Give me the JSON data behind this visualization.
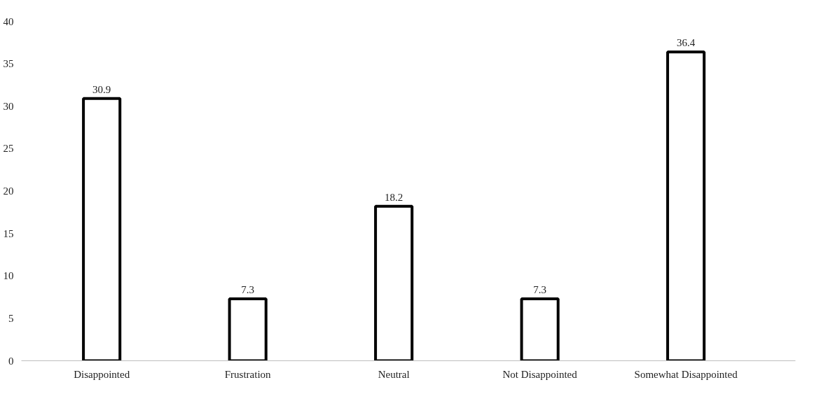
{
  "chart_data": {
    "type": "bar",
    "categories": [
      "Disappointed",
      "Frustration",
      "Neutral",
      "Not Disappointed",
      "Somewhat Disappointed"
    ],
    "values": [
      30.9,
      7.3,
      18.2,
      7.3,
      36.4
    ],
    "color": "#ffffff",
    "ylim": [
      0,
      40
    ],
    "yticks": [
      0,
      5,
      10,
      15,
      20,
      25,
      30,
      35,
      40
    ],
    "data_labels": true,
    "grid": false
  }
}
